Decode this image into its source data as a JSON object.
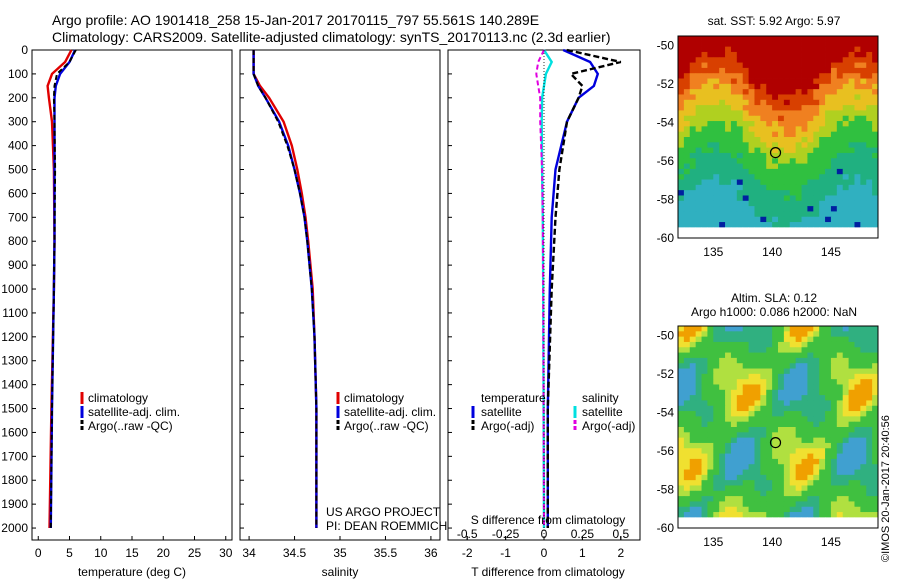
{
  "header": {
    "line1": "Argo profile: AO 1901418_258 15-Jan-2017 20170115_797 55.561S 140.289E",
    "line2": "Climatology: CARS2009. Satellite-adjusted climatology: synTS_20170113.nc (2.3d earlier)"
  },
  "colors": {
    "climatology": "#e00000",
    "satellite": "#0000dd",
    "argo": "#000000",
    "salinity_sat": "#00e0e0",
    "salinity_argo": "#e000e0"
  },
  "depth_axis": {
    "ticks": [
      "0",
      "100",
      "200",
      "300",
      "400",
      "500",
      "600",
      "700",
      "800",
      "900",
      "1000",
      "1100",
      "1200",
      "1300",
      "1400",
      "1500",
      "1600",
      "1700",
      "1800",
      "1900",
      "2000"
    ]
  },
  "panels": {
    "temperature": {
      "xlabel": "temperature (deg C)",
      "xticks": [
        "0",
        "5",
        "10",
        "15",
        "20",
        "25",
        "30"
      ],
      "legend": [
        "climatology",
        "satellite-adj. clim.",
        "Argo(..raw -QC)"
      ]
    },
    "salinity": {
      "xlabel": "salinity",
      "xticks": [
        "34",
        "34.5",
        "35",
        "35.5",
        "36"
      ],
      "legend": [
        "climatology",
        "satellite-adj. clim.",
        "Argo(..raw -QC)"
      ],
      "credit1": "US ARGO PROJECT",
      "credit2": "PI: DEAN ROEMMICH"
    },
    "difference": {
      "xlabel": "T difference from climatology",
      "toplabel": "S difference from climatology",
      "s_ticks": [
        "-0.5",
        "-0.25",
        "0",
        "0.25",
        "0.5"
      ],
      "t_ticks": [
        "-2",
        "-1",
        "0",
        "1",
        "2"
      ],
      "legend_t_title": "temperature",
      "legend_t": [
        "satellite",
        "Argo(-adj)"
      ],
      "legend_s_title": "salinity",
      "legend_s": [
        "satellite",
        "Argo(-adj)"
      ]
    }
  },
  "maps": {
    "sst_title": "sat. SST: 5.92  Argo: 5.97",
    "sla_title1": "Altim. SLA: 0.12",
    "sla_title2": "Argo h1000: 0.086 h2000: NaN",
    "yticks": [
      "-50",
      "-52",
      "-54",
      "-56",
      "-58",
      "-60"
    ],
    "xticks": [
      "135",
      "140",
      "145"
    ]
  },
  "footer": {
    "stamp": "©IMOS 20-Jan-2017 20:40:56"
  },
  "chart_data": [
    {
      "type": "line",
      "xlabel": "temperature (deg C)",
      "ylabel": "",
      "xlim": [
        -1,
        31
      ],
      "ylim": [
        2050,
        0
      ],
      "series": [
        {
          "name": "climatology",
          "depth": [
            0,
            50,
            100,
            150,
            200,
            300,
            500,
            800,
            1000,
            1500,
            2000
          ],
          "values": [
            5.3,
            4.3,
            2.2,
            1.5,
            1.7,
            2.2,
            2.5,
            2.6,
            2.5,
            2.1,
            1.8
          ]
        },
        {
          "name": "satellite-adj. clim.",
          "depth": [
            0,
            50,
            100,
            150,
            200,
            300,
            500,
            800,
            1000,
            1500,
            2000
          ],
          "values": [
            5.9,
            5.0,
            3.5,
            2.8,
            2.6,
            2.6,
            2.6,
            2.6,
            2.5,
            2.2,
            2.0
          ]
        },
        {
          "name": "Argo(..raw -QC)",
          "depth": [
            0,
            50,
            100,
            150,
            200,
            300,
            500,
            800,
            1000,
            1500,
            2000
          ],
          "values": [
            6.0,
            5.0,
            3.0,
            2.6,
            2.5,
            2.6,
            2.7,
            2.6,
            2.5,
            2.2,
            2.0
          ]
        }
      ]
    },
    {
      "type": "line",
      "xlabel": "salinity",
      "ylabel": "",
      "xlim": [
        33.9,
        36.1
      ],
      "ylim": [
        2050,
        0
      ],
      "series": [
        {
          "name": "climatology",
          "depth": [
            0,
            100,
            150,
            200,
            300,
            400,
            500,
            600,
            700,
            800,
            1000,
            1200,
            1500,
            2000
          ],
          "values": [
            34.05,
            34.05,
            34.12,
            34.22,
            34.38,
            34.47,
            34.53,
            34.58,
            34.62,
            34.65,
            34.7,
            34.72,
            34.74,
            34.74
          ]
        },
        {
          "name": "satellite-adj. clim.",
          "depth": [
            0,
            100,
            150,
            200,
            300,
            400,
            500,
            600,
            700,
            800,
            1000,
            1200,
            1500,
            2000
          ],
          "values": [
            34.05,
            34.05,
            34.1,
            34.18,
            34.33,
            34.43,
            34.5,
            34.56,
            34.61,
            34.64,
            34.69,
            34.72,
            34.74,
            34.74
          ]
        },
        {
          "name": "Argo(..raw -QC)",
          "depth": [
            0,
            100,
            150,
            200,
            300,
            400,
            500,
            600,
            700,
            800,
            1000,
            1200,
            1500,
            2000
          ],
          "values": [
            34.05,
            34.05,
            34.1,
            34.18,
            34.32,
            34.42,
            34.5,
            34.56,
            34.61,
            34.64,
            34.69,
            34.72,
            34.74,
            34.74
          ]
        }
      ]
    },
    {
      "type": "line",
      "xlabel": "T difference from climatology",
      "ylabel": "",
      "xlim": [
        -2.5,
        2.5
      ],
      "ylim": [
        2050,
        0
      ],
      "series": [
        {
          "name": "temperature satellite",
          "depth": [
            0,
            50,
            100,
            150,
            200,
            300,
            500,
            700,
            1000,
            1500,
            2000
          ],
          "values": [
            0.5,
            1.2,
            1.4,
            1.3,
            0.9,
            0.6,
            0.3,
            0.2,
            0.15,
            0.1,
            0.1
          ]
        },
        {
          "name": "temperature Argo(-adj)",
          "depth": [
            0,
            50,
            100,
            150,
            200,
            300,
            500,
            700,
            1000,
            1500,
            2000
          ],
          "values": [
            0.6,
            2.0,
            0.7,
            1.0,
            0.9,
            0.6,
            0.4,
            0.3,
            0.2,
            0.1,
            0.1
          ]
        },
        {
          "name": "salinity satellite",
          "depth": [
            0,
            50,
            100,
            150,
            200,
            300,
            500,
            700,
            1000,
            1500,
            2000
          ],
          "values": [
            0.0,
            0.2,
            0.05,
            0.0,
            -0.05,
            -0.06,
            -0.05,
            -0.03,
            -0.02,
            -0.01,
            0.0
          ]
        },
        {
          "name": "salinity Argo(-adj)",
          "depth": [
            0,
            50,
            100,
            150,
            200,
            300,
            500,
            700,
            1000,
            1500,
            2000
          ],
          "values": [
            0.0,
            -0.15,
            -0.2,
            -0.15,
            -0.1,
            -0.1,
            -0.05,
            -0.03,
            -0.02,
            -0.01,
            0.0
          ]
        }
      ]
    },
    {
      "type": "heatmap",
      "title": "sat. SST: 5.92  Argo: 5.97",
      "xlim": [
        132,
        149
      ],
      "ylim": [
        -60,
        -49.5
      ],
      "marker": {
        "lon": 140.289,
        "lat": -55.561
      }
    },
    {
      "type": "heatmap",
      "title": "Altim. SLA: 0.12",
      "xlim": [
        132,
        149
      ],
      "ylim": [
        -60,
        -49.5
      ],
      "marker": {
        "lon": 140.289,
        "lat": -55.561
      }
    }
  ]
}
